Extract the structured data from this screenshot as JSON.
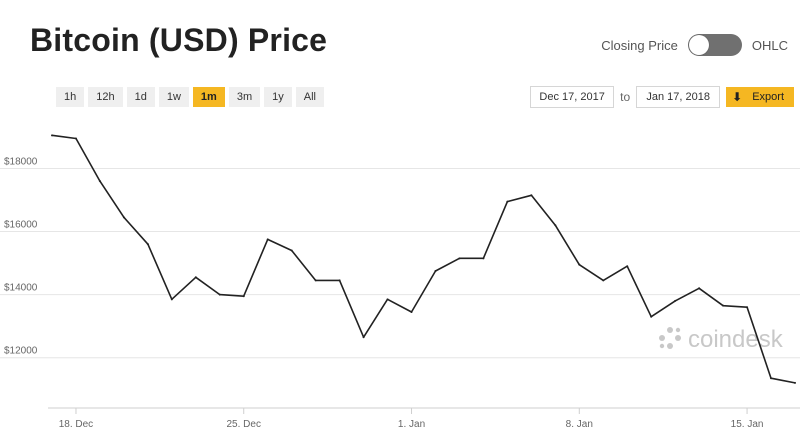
{
  "header": {
    "title": "Bitcoin (USD) Price",
    "toggle_left_label": "Closing Price",
    "toggle_right_label": "OHLC"
  },
  "ranges": [
    {
      "label": "1h",
      "active": false
    },
    {
      "label": "12h",
      "active": false
    },
    {
      "label": "1d",
      "active": false
    },
    {
      "label": "1w",
      "active": false
    },
    {
      "label": "1m",
      "active": true
    },
    {
      "label": "3m",
      "active": false
    },
    {
      "label": "1y",
      "active": false
    },
    {
      "label": "All",
      "active": false
    }
  ],
  "date_range": {
    "from": "Dec 17, 2017",
    "to_label": "to",
    "to": "Jan 17, 2018",
    "export_label": "Export"
  },
  "watermark": "coindesk",
  "colors": {
    "accent": "#f5b722",
    "line": "#222222",
    "grid": "#e6e6e6"
  },
  "chart_data": {
    "type": "line",
    "x": [
      "Dec 17",
      "Dec 18",
      "Dec 19",
      "Dec 20",
      "Dec 21",
      "Dec 22",
      "Dec 23",
      "Dec 24",
      "Dec 25",
      "Dec 26",
      "Dec 27",
      "Dec 28",
      "Dec 29",
      "Dec 30",
      "Dec 31",
      "Jan 1",
      "Jan 2",
      "Jan 3",
      "Jan 4",
      "Jan 5",
      "Jan 6",
      "Jan 7",
      "Jan 8",
      "Jan 9",
      "Jan 10",
      "Jan 11",
      "Jan 12",
      "Jan 13",
      "Jan 14",
      "Jan 15",
      "Jan 16",
      "Jan 17"
    ],
    "values": [
      19050,
      18950,
      17600,
      16450,
      15600,
      13850,
      14550,
      14000,
      13950,
      15750,
      15400,
      14450,
      14450,
      12650,
      13850,
      13450,
      14750,
      15150,
      15150,
      16950,
      17150,
      16200,
      14950,
      14450,
      14900,
      13300,
      13800,
      14200,
      13650,
      13600,
      11350,
      11200
    ],
    "xticks": [
      {
        "label": "18. Dec",
        "index": 1
      },
      {
        "label": "25. Dec",
        "index": 8
      },
      {
        "label": "1. Jan",
        "index": 15
      },
      {
        "label": "8. Jan",
        "index": 22
      },
      {
        "label": "15. Jan",
        "index": 29
      }
    ],
    "yticks": [
      12000,
      14000,
      16000,
      18000
    ],
    "ytick_labels": [
      "$12000",
      "$14000",
      "$16000",
      "$18000"
    ],
    "ylim": [
      10500,
      19600
    ],
    "grid": true
  }
}
